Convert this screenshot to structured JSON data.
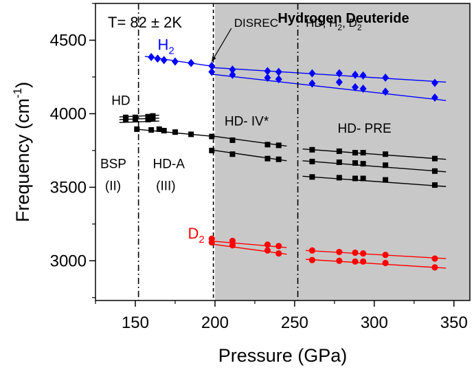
{
  "chart_data": {
    "type": "scatter",
    "title": "Hydrogen Deuteride",
    "temperature_label": "T= 82 ± 2K",
    "xlabel": "Pressure (GPa)",
    "ylabel": "Frequency (cm⁻¹)",
    "xlim": [
      125,
      360
    ],
    "ylim": [
      2730,
      4750
    ],
    "x_ticks": [
      150,
      200,
      250,
      300,
      350
    ],
    "y_ticks": [
      3000,
      3500,
      4000,
      4500
    ],
    "grid": false,
    "shaded_region": {
      "from": 200,
      "to": 360,
      "color": "#c8c8c8"
    },
    "phase_boundaries": [
      {
        "x": 152,
        "style": "dash-dot"
      },
      {
        "x": 199,
        "style": "dashed"
      },
      {
        "x": 252,
        "style": "dash-dot"
      }
    ],
    "annotations": [
      {
        "id": "disrec",
        "text": "DISREC",
        "x": 212,
        "y": 4590,
        "arrow_to": [
          198,
          4355
        ]
      },
      {
        "id": "hd-h2-d2",
        "text": "HD, H₂, D₂",
        "x": 257,
        "y": 4590
      },
      {
        "id": "hd-left",
        "text": "HD",
        "x": 135,
        "y": 4060
      },
      {
        "id": "hd-iv",
        "text": "HD- IV*",
        "x": 206,
        "y": 3920
      },
      {
        "id": "hd-pre",
        "text": "HD- PRE",
        "x": 277,
        "y": 3870
      },
      {
        "id": "bsp",
        "text": "BSP",
        "x": 128,
        "y": 3630
      },
      {
        "id": "bsp-phase",
        "text": "(II)",
        "x": 131,
        "y": 3480
      },
      {
        "id": "hd-a",
        "text": "HD-A",
        "x": 161,
        "y": 3630
      },
      {
        "id": "hd-a-phase",
        "text": "(III)",
        "x": 163,
        "y": 3480
      }
    ],
    "series": [
      {
        "name": "H₂",
        "color": "#0000ff",
        "marker": "diamond",
        "label_at": [
          164,
          4435
        ],
        "points": [
          [
            160,
            4385
          ],
          [
            164,
            4375
          ],
          [
            168,
            4365
          ],
          [
            175,
            4355
          ],
          [
            185,
            4345
          ],
          [
            198,
            4325
          ],
          [
            198,
            4285
          ],
          [
            211,
            4300
          ],
          [
            211,
            4265
          ],
          [
            233,
            4290
          ],
          [
            233,
            4245
          ],
          [
            240,
            4285
          ],
          [
            240,
            4235
          ],
          [
            261,
            4275
          ],
          [
            261,
            4205
          ],
          [
            278,
            4275
          ],
          [
            278,
            4215
          ],
          [
            288,
            4265
          ],
          [
            288,
            4180
          ],
          [
            293,
            4260
          ],
          [
            293,
            4170
          ],
          [
            307,
            4245
          ],
          [
            307,
            4150
          ],
          [
            338,
            4210
          ],
          [
            338,
            4110
          ]
        ],
        "fits": [
          [
            [
              156,
              4390
            ],
            [
              200,
              4320
            ]
          ],
          [
            [
              197,
              4315
            ],
            [
              345,
              4215
            ]
          ],
          [
            [
              197,
              4270
            ],
            [
              345,
              4090
            ]
          ]
        ]
      },
      {
        "name": "HD",
        "color": "#000000",
        "marker": "square",
        "points": [
          [
            144,
            3960
          ],
          [
            144,
            3975
          ],
          [
            150,
            3960
          ],
          [
            150,
            3975
          ],
          [
            151,
            3895
          ],
          [
            158,
            3960
          ],
          [
            158,
            3980
          ],
          [
            160,
            3890
          ],
          [
            161,
            3965
          ],
          [
            161,
            3985
          ],
          [
            165,
            3895
          ],
          [
            168,
            3885
          ],
          [
            175,
            3875
          ],
          [
            185,
            3860
          ],
          [
            198,
            3845
          ],
          [
            198,
            3750
          ],
          [
            211,
            3820
          ],
          [
            211,
            3725
          ],
          [
            233,
            3790
          ],
          [
            233,
            3695
          ],
          [
            240,
            3785
          ],
          [
            240,
            3690
          ],
          [
            261,
            3755
          ],
          [
            261,
            3675
          ],
          [
            261,
            3570
          ],
          [
            278,
            3745
          ],
          [
            278,
            3670
          ],
          [
            278,
            3565
          ],
          [
            288,
            3735
          ],
          [
            288,
            3665
          ],
          [
            288,
            3560
          ],
          [
            293,
            3735
          ],
          [
            293,
            3660
          ],
          [
            293,
            3560
          ],
          [
            307,
            3725
          ],
          [
            307,
            3650
          ],
          [
            307,
            3550
          ],
          [
            338,
            3695
          ],
          [
            338,
            3610
          ],
          [
            338,
            3515
          ]
        ],
        "fits": [
          [
            [
              140,
              3940
            ],
            [
              165,
              3950
            ]
          ],
          [
            [
              140,
              3960
            ],
            [
              165,
              3970
            ]
          ],
          [
            [
              140,
              3978
            ],
            [
              165,
              3990
            ]
          ],
          [
            [
              150,
              3895
            ],
            [
              200,
              3845
            ]
          ],
          [
            [
              197,
              3850
            ],
            [
              245,
              3780
            ]
          ],
          [
            [
              197,
              3755
            ],
            [
              245,
              3680
            ]
          ],
          [
            [
              255,
              3760
            ],
            [
              345,
              3690
            ]
          ],
          [
            [
              255,
              3680
            ],
            [
              345,
              3605
            ]
          ],
          [
            [
              255,
              3575
            ],
            [
              345,
              3505
            ]
          ]
        ]
      },
      {
        "name": "D₂",
        "color": "#ff0000",
        "marker": "circle",
        "label_at": [
          183,
          3150
        ],
        "points": [
          [
            198,
            3150
          ],
          [
            198,
            3125
          ],
          [
            211,
            3135
          ],
          [
            211,
            3105
          ],
          [
            233,
            3110
          ],
          [
            233,
            3070
          ],
          [
            240,
            3100
          ],
          [
            240,
            3050
          ],
          [
            261,
            3070
          ],
          [
            261,
            3005
          ],
          [
            278,
            3060
          ],
          [
            278,
            3000
          ],
          [
            288,
            3055
          ],
          [
            288,
            2995
          ],
          [
            293,
            3050
          ],
          [
            293,
            2995
          ],
          [
            307,
            3040
          ],
          [
            307,
            2985
          ],
          [
            338,
            3015
          ],
          [
            338,
            2955
          ]
        ],
        "fits": [
          [
            [
              197,
              3135
            ],
            [
              245,
              3090
            ]
          ],
          [
            [
              197,
              3115
            ],
            [
              245,
              3045
            ]
          ],
          [
            [
              257,
              3070
            ],
            [
              345,
              3015
            ]
          ],
          [
            [
              257,
              3010
            ],
            [
              345,
              2950
            ]
          ]
        ]
      }
    ]
  }
}
